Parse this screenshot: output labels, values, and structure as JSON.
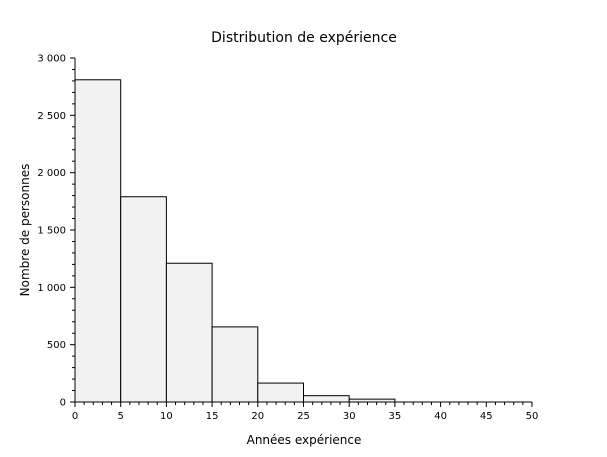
{
  "chart_data": {
    "type": "bar",
    "title": "Distribution de expérience",
    "xlabel": "Années expérience",
    "ylabel": "Nombre de personnes",
    "bins": [
      {
        "x0": 0,
        "x1": 5,
        "value": 2810
      },
      {
        "x0": 5,
        "x1": 10,
        "value": 1790
      },
      {
        "x0": 10,
        "x1": 15,
        "value": 1210
      },
      {
        "x0": 15,
        "x1": 20,
        "value": 655
      },
      {
        "x0": 20,
        "x1": 25,
        "value": 165
      },
      {
        "x0": 25,
        "x1": 30,
        "value": 55
      },
      {
        "x0": 30,
        "x1": 35,
        "value": 25
      }
    ],
    "xlim": [
      0,
      50
    ],
    "ylim": [
      0,
      3000
    ],
    "xticks": [
      "0",
      "5",
      "10",
      "15",
      "20",
      "25",
      "30",
      "35",
      "40",
      "45",
      "50"
    ],
    "yticks": [
      "0",
      "500",
      "1 000",
      "1 500",
      "2 000",
      "2 500",
      "3 000"
    ],
    "grid": false,
    "bar_fill": "#f2f2f2",
    "bar_stroke": "#000000"
  }
}
